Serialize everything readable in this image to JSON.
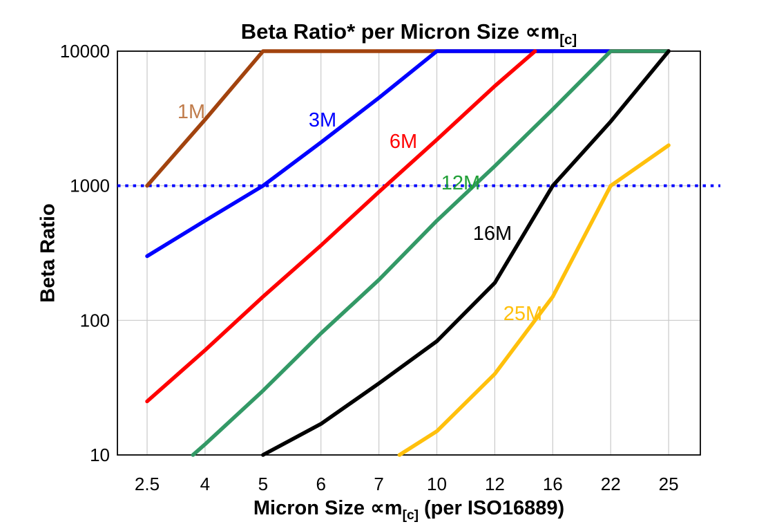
{
  "page": {
    "background": "#FFFFFF"
  },
  "title": {
    "text_main": "Beta Ratio* per Micron Size ",
    "text_symbol": "∝m",
    "text_sub": "[c]"
  },
  "y_axis": {
    "title": "Beta Ratio",
    "tick_labels": [
      "10",
      "100",
      "1000",
      "10000"
    ]
  },
  "x_axis": {
    "title_main": "Micron Size ",
    "title_symbol": "∝m",
    "title_sub": "[c]",
    "title_suffix": " (per ISO16889)",
    "tick_labels": [
      "2.5",
      "4",
      "5",
      "6",
      "7",
      "10",
      "12",
      "16",
      "22",
      "25"
    ]
  },
  "chart_data": {
    "type": "line",
    "title": "Beta Ratio* per Micron Size ∝m[c]",
    "xlabel": "Micron Size ∝m[c] (per ISO16889)",
    "ylabel": "Beta Ratio",
    "x_scale": "categorical",
    "y_scale": "log",
    "ylim": [
      10,
      10000
    ],
    "y_ticks": [
      10,
      100,
      1000,
      10000
    ],
    "grid": true,
    "grid_color": "#C9C9C9",
    "frame_color": "#000000",
    "categories": [
      2.5,
      4,
      5,
      6,
      7,
      10,
      12,
      16,
      22,
      25
    ],
    "reference_line": {
      "y": 1000,
      "color": "#0000FF",
      "style": "dotted"
    },
    "series": [
      {
        "name": "1M",
        "color": "#A2430E",
        "label_color": "#C07C4B",
        "values": [
          1000,
          3100,
          10000,
          10000,
          10000,
          10000,
          10000,
          10000,
          10000,
          10000
        ]
      },
      {
        "name": "3M",
        "color": "#0000FF",
        "label_color": "#0000FF",
        "values": [
          300,
          550,
          1000,
          2100,
          4500,
          10000,
          10000,
          10000,
          10000,
          10000
        ]
      },
      {
        "name": "6M",
        "color": "#FF0000",
        "label_color": "#FF0000",
        "values": [
          25,
          60,
          150,
          360,
          900,
          2200,
          5500,
          13000,
          10000,
          10000
        ]
      },
      {
        "name": "12M",
        "color": "#339966",
        "label_color": "#22A038",
        "values": [
          5,
          12,
          30,
          80,
          200,
          550,
          1400,
          3700,
          10000,
          10000
        ]
      },
      {
        "name": "16M",
        "color": "#000000",
        "label_color": "#000000",
        "values": [
          null,
          null,
          10,
          17,
          34,
          70,
          190,
          1000,
          3000,
          10000
        ]
      },
      {
        "name": "25M",
        "color": "#FFC00C",
        "label_color": "#FFC00C",
        "values": [
          null,
          null,
          null,
          null,
          8,
          15,
          40,
          150,
          1000,
          2000
        ]
      }
    ]
  }
}
